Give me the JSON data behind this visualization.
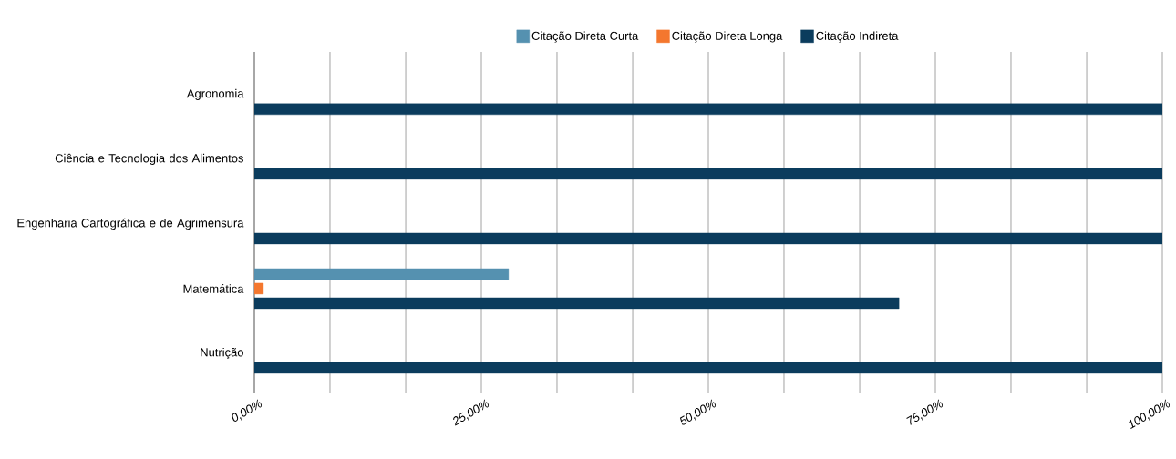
{
  "chart_data": {
    "type": "bar",
    "orientation": "horizontal",
    "categories": [
      "Agronomia",
      "Ciência e Tecnologia dos Alimentos",
      "Engenharia Cartográfica e de Agrimensura",
      "Matemática",
      "Nutrição"
    ],
    "series": [
      {
        "name": "Citação Direta Curta",
        "color": "#5591b0",
        "values": [
          null,
          null,
          null,
          28,
          null
        ]
      },
      {
        "name": "Citação Direta Longa",
        "color": "#f4772e",
        "values": [
          null,
          null,
          null,
          1,
          null
        ]
      },
      {
        "name": "Citação Indireta",
        "color": "#0b3c5d",
        "values": [
          100,
          100,
          100,
          71,
          100
        ]
      }
    ],
    "xlim": [
      0,
      100
    ],
    "xticks": [
      {
        "value": 0,
        "label": "0,00%"
      },
      {
        "value": 8.33,
        "label": null
      },
      {
        "value": 16.67,
        "label": null
      },
      {
        "value": 25,
        "label": "25,00%"
      },
      {
        "value": 33.33,
        "label": null
      },
      {
        "value": 41.67,
        "label": null
      },
      {
        "value": 50,
        "label": "50,00%"
      },
      {
        "value": 58.33,
        "label": null
      },
      {
        "value": 66.67,
        "label": null
      },
      {
        "value": 75,
        "label": "75,00%"
      },
      {
        "value": 83.33,
        "label": null
      },
      {
        "value": 91.67,
        "label": null
      },
      {
        "value": 100,
        "label": "100,00%"
      }
    ],
    "grid": "x",
    "legend": "top"
  }
}
